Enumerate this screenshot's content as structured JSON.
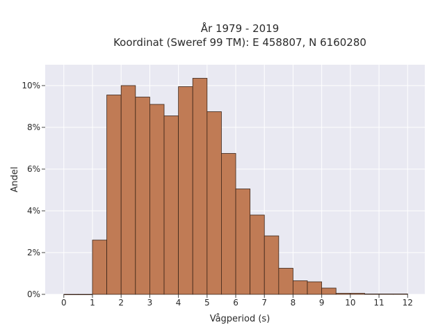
{
  "chart_data": {
    "type": "bar",
    "title_line1": "År 1979 - 2019",
    "title_line2": "Koordinat (Sweref 99 TM): E 458807, N 6160280",
    "xlabel": "Vågperiod (s)",
    "ylabel": "Andel",
    "bin_width": 0.5,
    "bins": [
      {
        "x0": 0.0,
        "value": 0.0
      },
      {
        "x0": 0.5,
        "value": 0.0
      },
      {
        "x0": 1.0,
        "value": 2.6
      },
      {
        "x0": 1.5,
        "value": 9.55
      },
      {
        "x0": 2.0,
        "value": 10.0
      },
      {
        "x0": 2.5,
        "value": 9.45
      },
      {
        "x0": 3.0,
        "value": 9.1
      },
      {
        "x0": 3.5,
        "value": 8.55
      },
      {
        "x0": 4.0,
        "value": 9.95
      },
      {
        "x0": 4.5,
        "value": 10.35
      },
      {
        "x0": 5.0,
        "value": 8.75
      },
      {
        "x0": 5.5,
        "value": 6.75
      },
      {
        "x0": 6.0,
        "value": 5.05
      },
      {
        "x0": 6.5,
        "value": 3.8
      },
      {
        "x0": 7.0,
        "value": 2.8
      },
      {
        "x0": 7.5,
        "value": 1.25
      },
      {
        "x0": 8.0,
        "value": 0.65
      },
      {
        "x0": 8.5,
        "value": 0.6
      },
      {
        "x0": 9.0,
        "value": 0.3
      },
      {
        "x0": 9.5,
        "value": 0.05
      },
      {
        "x0": 10.0,
        "value": 0.05
      },
      {
        "x0": 10.5,
        "value": 0.02
      },
      {
        "x0": 11.0,
        "value": 0.02
      },
      {
        "x0": 11.5,
        "value": 0.02
      }
    ],
    "x_ticks": [
      {
        "value": 0,
        "label": "0"
      },
      {
        "value": 1,
        "label": "1"
      },
      {
        "value": 2,
        "label": "2"
      },
      {
        "value": 3,
        "label": "3"
      },
      {
        "value": 4,
        "label": "4"
      },
      {
        "value": 5,
        "label": "5"
      },
      {
        "value": 6,
        "label": "6"
      },
      {
        "value": 7,
        "label": "7"
      },
      {
        "value": 8,
        "label": "8"
      },
      {
        "value": 9,
        "label": "9"
      },
      {
        "value": 10,
        "label": "10"
      },
      {
        "value": 11,
        "label": "11"
      },
      {
        "value": 12,
        "label": "12"
      }
    ],
    "y_ticks": [
      {
        "value": 0,
        "label": "0%"
      },
      {
        "value": 2,
        "label": "2%"
      },
      {
        "value": 4,
        "label": "4%"
      },
      {
        "value": 6,
        "label": "6%"
      },
      {
        "value": 8,
        "label": "8%"
      },
      {
        "value": 10,
        "label": "10%"
      }
    ],
    "xlim": [
      -0.65,
      12.6
    ],
    "ylim": [
      0,
      11.0
    ],
    "unit": "%",
    "grid": true,
    "colors": {
      "bar_fill": "#c07b55",
      "bar_edge": "#3a2418",
      "plot_background": "#e9e9f2",
      "grid": "#ffffff"
    }
  }
}
